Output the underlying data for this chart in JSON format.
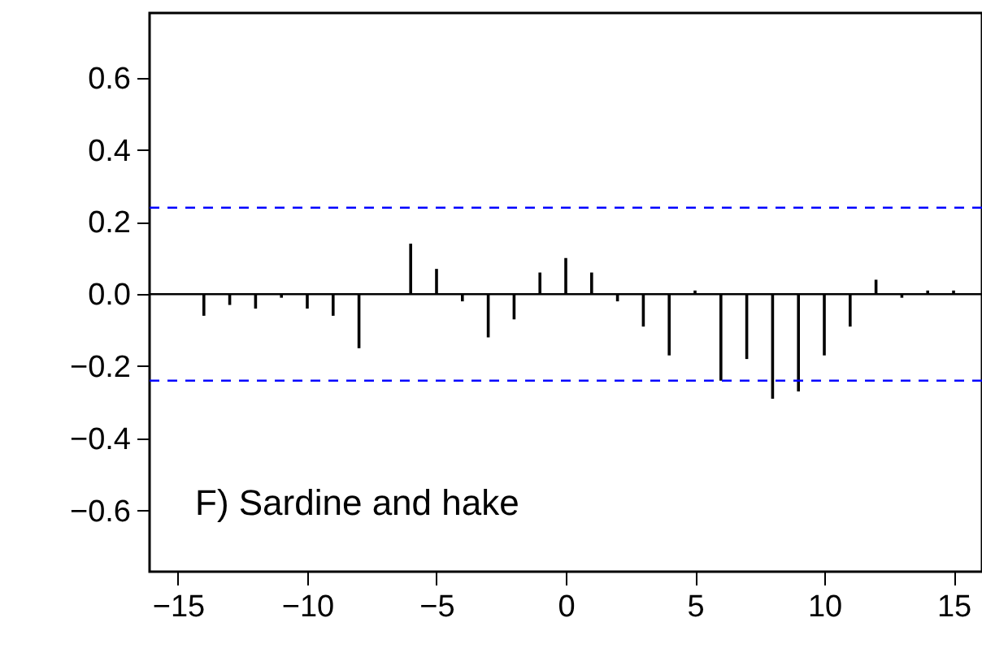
{
  "chart_data": {
    "type": "bar",
    "x": [
      -15,
      -14,
      -13,
      -12,
      -11,
      -10,
      -9,
      -8,
      -7,
      -6,
      -5,
      -4,
      -3,
      -2,
      -1,
      0,
      1,
      2,
      3,
      4,
      5,
      6,
      7,
      8,
      9,
      10,
      11,
      12,
      13,
      14,
      15
    ],
    "values": [
      0,
      -0.06,
      -0.03,
      -0.04,
      -0.01,
      -0.04,
      -0.06,
      -0.15,
      0,
      0.14,
      0.07,
      -0.02,
      -0.12,
      -0.07,
      0.06,
      0.1,
      0.06,
      -0.02,
      -0.09,
      -0.17,
      0.01,
      -0.24,
      -0.18,
      -0.29,
      -0.27,
      -0.17,
      -0.09,
      0.04,
      -0.01,
      0.01,
      0.01
    ],
    "color": "#000000",
    "xlim": [
      -16.1,
      16.1
    ],
    "xticks": [
      -15,
      -10,
      -5,
      0,
      5,
      10,
      15
    ],
    "ylim": [
      -0.77,
      0.78
    ],
    "yticks": [
      -0.6,
      -0.4,
      -0.2,
      {
        "value": 0,
        "label": "0.0"
      },
      0.2,
      0.4,
      0.6
    ],
    "ref_lines": [
      {
        "axis": "y",
        "value": 0,
        "color": "#000000",
        "line_style": "solid"
      },
      {
        "axis": "y",
        "value": 0.24,
        "color": "#0000ff",
        "line_style": "dashed"
      },
      {
        "axis": "y",
        "value": -0.24,
        "color": "#0000ff",
        "line_style": "dashed"
      }
    ],
    "annotations": [
      "F)  Sardine and hake"
    ],
    "grid": false
  }
}
